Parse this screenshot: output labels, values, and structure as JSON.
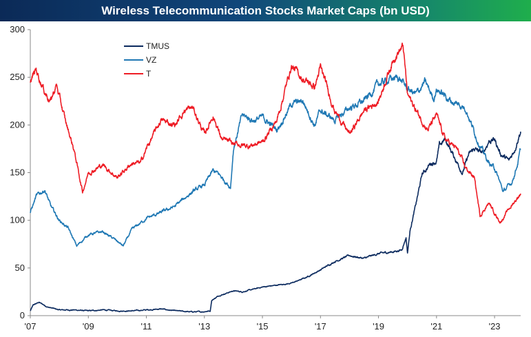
{
  "chart_data": {
    "type": "line",
    "title": "Wireless Telecommunication Stocks Market Caps (bn USD)",
    "xlabel": "",
    "ylabel": "",
    "xlim": [
      2007.0,
      2023.9
    ],
    "ylim": [
      0,
      300
    ],
    "y_ticks": [
      0,
      50,
      100,
      150,
      200,
      250,
      300
    ],
    "x_ticks": [
      {
        "value": 2007,
        "label": "'07"
      },
      {
        "value": 2009,
        "label": "'09"
      },
      {
        "value": 2011,
        "label": "'11"
      },
      {
        "value": 2013,
        "label": "'13"
      },
      {
        "value": 2015,
        "label": "'15"
      },
      {
        "value": 2017,
        "label": "'17"
      },
      {
        "value": 2019,
        "label": "'19"
      },
      {
        "value": 2021,
        "label": "'21"
      },
      {
        "value": 2023,
        "label": "'23"
      }
    ],
    "grid": false,
    "legend": "top-left",
    "series": [
      {
        "name": "TMUS",
        "color": "#0b2a5e",
        "x": [
          2007.0,
          2007.1,
          2007.3,
          2007.6,
          2008.0,
          2008.5,
          2009.0,
          2009.5,
          2010.0,
          2010.5,
          2011.0,
          2011.5,
          2012.0,
          2012.5,
          2012.9,
          2013.2,
          2013.25,
          2013.5,
          2013.8,
          2014.0,
          2014.3,
          2014.6,
          2015.0,
          2015.5,
          2016.0,
          2016.5,
          2017.0,
          2017.5,
          2018.0,
          2018.5,
          2019.0,
          2019.5,
          2019.8,
          2019.95,
          2020.0,
          2020.1,
          2020.3,
          2020.5,
          2020.8,
          2021.0,
          2021.1,
          2021.3,
          2021.6,
          2021.9,
          2022.1,
          2022.3,
          2022.6,
          2022.8,
          2023.0,
          2023.2,
          2023.5,
          2023.7,
          2023.85,
          2023.9
        ],
        "values": [
          5,
          11,
          14,
          9,
          6,
          6,
          5,
          6,
          5,
          5,
          6,
          7,
          5,
          4,
          4,
          5,
          16,
          21,
          24,
          26,
          25,
          27,
          30,
          32,
          34,
          40,
          48,
          57,
          63,
          60,
          65,
          67,
          69,
          82,
          66,
          92,
          118,
          148,
          160,
          162,
          178,
          185,
          167,
          150,
          168,
          175,
          170,
          183,
          185,
          170,
          162,
          175,
          190,
          193
        ]
      },
      {
        "name": "VZ",
        "color": "#1f78b4",
        "x": [
          2007.0,
          2007.2,
          2007.5,
          2007.7,
          2008.0,
          2008.3,
          2008.6,
          2009.0,
          2009.5,
          2010.0,
          2010.2,
          2010.5,
          2011.0,
          2011.5,
          2012.0,
          2012.5,
          2013.0,
          2013.3,
          2013.5,
          2013.9,
          2014.0,
          2014.3,
          2014.7,
          2015.0,
          2015.5,
          2016.0,
          2016.4,
          2016.8,
          2017.0,
          2017.5,
          2018.0,
          2018.5,
          2019.0,
          2019.4,
          2019.7,
          2020.0,
          2020.3,
          2020.6,
          2020.9,
          2021.0,
          2021.5,
          2022.0,
          2022.4,
          2022.8,
          2023.0,
          2023.3,
          2023.6,
          2023.8,
          2023.9
        ],
        "values": [
          108,
          125,
          132,
          115,
          100,
          92,
          73,
          85,
          88,
          78,
          73,
          90,
          102,
          108,
          115,
          128,
          137,
          152,
          148,
          135,
          175,
          210,
          205,
          208,
          195,
          222,
          225,
          200,
          215,
          205,
          218,
          225,
          243,
          248,
          250,
          238,
          232,
          245,
          228,
          238,
          225,
          218,
          185,
          160,
          155,
          130,
          140,
          160,
          175
        ]
      },
      {
        "name": "T",
        "color": "#ee1c25",
        "x": [
          2007.0,
          2007.2,
          2007.5,
          2007.7,
          2007.9,
          2008.2,
          2008.5,
          2008.8,
          2009.0,
          2009.5,
          2010.0,
          2010.5,
          2010.8,
          2011.0,
          2011.5,
          2012.0,
          2012.3,
          2012.6,
          2013.0,
          2013.3,
          2013.6,
          2014.0,
          2014.5,
          2015.0,
          2015.5,
          2016.0,
          2016.4,
          2016.8,
          2017.0,
          2017.5,
          2018.0,
          2018.5,
          2019.0,
          2019.3,
          2019.6,
          2019.85,
          2020.0,
          2020.3,
          2020.7,
          2021.0,
          2021.3,
          2021.7,
          2022.0,
          2022.3,
          2022.5,
          2022.8,
          2023.0,
          2023.2,
          2023.5,
          2023.7,
          2023.9
        ],
        "values": [
          245,
          258,
          235,
          225,
          242,
          205,
          175,
          130,
          150,
          158,
          145,
          160,
          160,
          175,
          205,
          200,
          215,
          218,
          190,
          210,
          185,
          180,
          178,
          182,
          205,
          262,
          248,
          240,
          260,
          215,
          190,
          215,
          225,
          252,
          275,
          282,
          232,
          215,
          195,
          210,
          185,
          175,
          155,
          145,
          105,
          118,
          108,
          98,
          112,
          120,
          128
        ]
      }
    ]
  }
}
